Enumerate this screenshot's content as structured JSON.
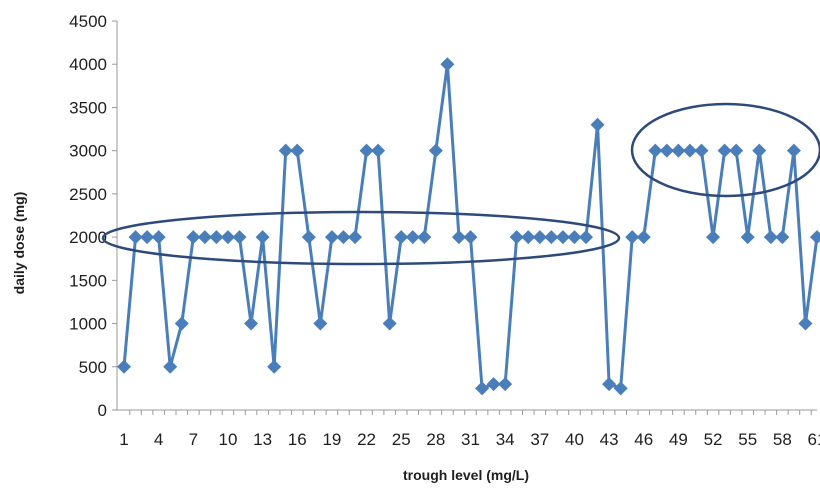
{
  "chart_data": {
    "type": "line",
    "xlabel": "trough level (mg/L)",
    "ylabel": "daily dose (mg)",
    "ylim": [
      0,
      4500
    ],
    "y_ticks": [
      0,
      500,
      1000,
      1500,
      2000,
      2500,
      3000,
      3500,
      4000,
      4500
    ],
    "x_ticks": [
      1,
      4,
      7,
      10,
      13,
      16,
      19,
      22,
      25,
      28,
      31,
      34,
      37,
      40,
      43,
      46,
      49,
      52,
      55,
      58,
      61
    ],
    "x": [
      1,
      2,
      3,
      4,
      5,
      6,
      7,
      8,
      9,
      10,
      11,
      12,
      13,
      14,
      15,
      16,
      17,
      18,
      19,
      20,
      21,
      22,
      23,
      24,
      25,
      26,
      27,
      28,
      29,
      30,
      31,
      32,
      33,
      34,
      35,
      36,
      37,
      38,
      39,
      40,
      41,
      42,
      43,
      44,
      45,
      46,
      47,
      48,
      49,
      50,
      51,
      52,
      53,
      54,
      55,
      56,
      57,
      58,
      59,
      60,
      61
    ],
    "series": [
      {
        "values": [
          500,
          2000,
          2000,
          2000,
          500,
          1000,
          2000,
          2000,
          2000,
          2000,
          2000,
          1000,
          2000,
          500,
          3000,
          3000,
          2000,
          1000,
          2000,
          2000,
          2000,
          3000,
          3000,
          1000,
          2000,
          2000,
          2000,
          3000,
          4000,
          2000,
          2000,
          250,
          300,
          300,
          2000,
          2000,
          2000,
          2000,
          2000,
          2000,
          2000,
          3300,
          300,
          250,
          2000,
          2000,
          3000,
          3000,
          3000,
          3000,
          3000,
          2000,
          3000,
          3000,
          2000,
          3000,
          2000,
          2000,
          3000,
          1000,
          2000
        ],
        "color": "#4a7ebb",
        "marker": "diamond"
      }
    ],
    "annotations": [
      {
        "shape": "ellipse",
        "encloses": "points near 2000 mg from x=1 to x=41",
        "color": "#2d4a7a"
      },
      {
        "shape": "ellipse",
        "encloses": "points near 3000 mg from x=47 to x=59",
        "color": "#2d4a7a"
      }
    ],
    "grid": false,
    "legend": "none"
  }
}
